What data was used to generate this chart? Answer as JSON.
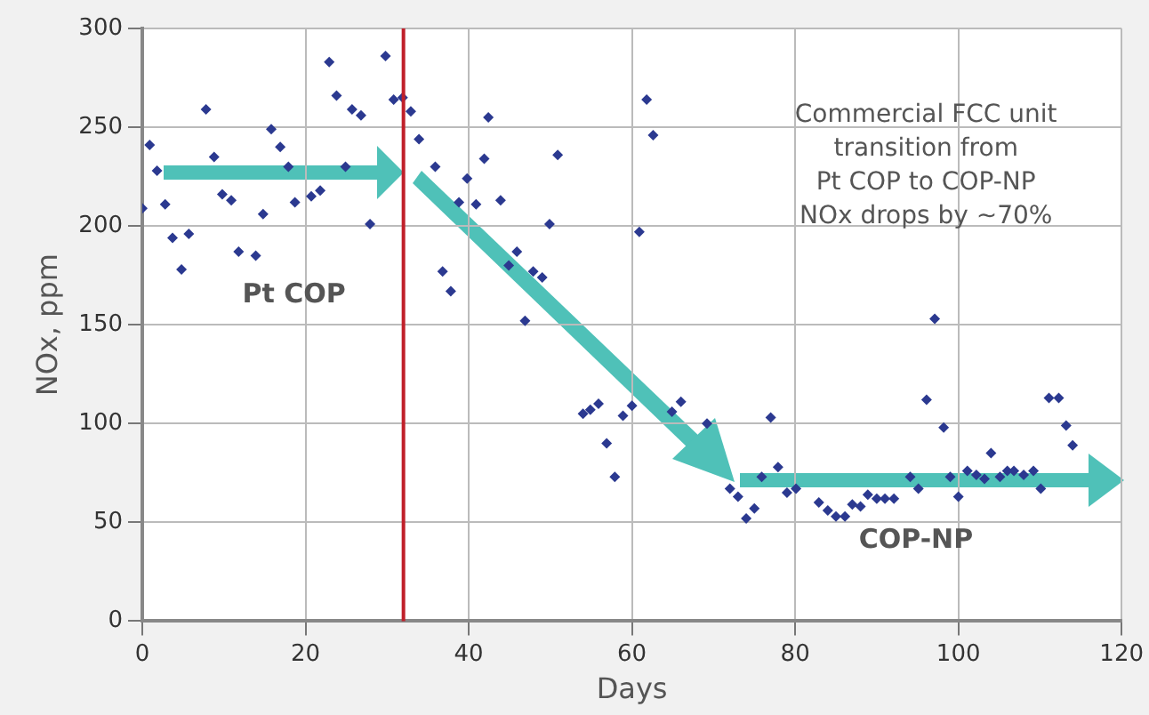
{
  "chart_data": {
    "type": "scatter",
    "xlabel": "Days",
    "ylabel": "NOx, ppm",
    "xlim": [
      0,
      120
    ],
    "xticks": [
      0,
      20,
      40,
      60,
      80,
      100,
      120
    ],
    "ylim": [
      0,
      300
    ],
    "yticks": [
      0,
      50,
      100,
      150,
      200,
      250,
      300
    ],
    "grid": true,
    "legend": false,
    "marker": "diamond",
    "series": [
      {
        "color": "#2b3990",
        "x": [
          0,
          0.9,
          1.8,
          2.8,
          3.7,
          4.8,
          5.7,
          7.8,
          8.8,
          9.8,
          10.9,
          11.8,
          13.9,
          14.8,
          15.8,
          16.9,
          17.9,
          18.7,
          20.7,
          21.8,
          22.9,
          23.8,
          24.9,
          25.7,
          26.8,
          27.9,
          29.8,
          30.8,
          31.9,
          32.9,
          33.9,
          35.9,
          36.8,
          37.8,
          38.8,
          39.8,
          40.9,
          41.9,
          42.4,
          43.9,
          44.9,
          45.9,
          46.9,
          47.9,
          49,
          49.9,
          50.9,
          54,
          54.9,
          55.9,
          56.9,
          57.9,
          58.9,
          60,
          60.9,
          61.8,
          62.6,
          64.9,
          66,
          69.2,
          72,
          73,
          74,
          75,
          75.9,
          77,
          77.9,
          79,
          80.1,
          82.9,
          84,
          85,
          86.1,
          87,
          88,
          88.9,
          90,
          91,
          92.1,
          94.1,
          95.1,
          96.1,
          97.1,
          98.2,
          99,
          100,
          101.1,
          102.2,
          103.2,
          104,
          105.1,
          106,
          106.8,
          108,
          109.2,
          110.1,
          111.1,
          112.3,
          113.2,
          114
        ],
        "values": [
          209,
          241,
          228,
          211,
          194,
          178,
          196,
          259,
          235,
          216,
          213,
          187,
          185,
          206,
          249,
          240,
          230,
          212,
          215,
          218,
          283,
          266,
          230,
          259,
          256,
          201,
          286,
          264,
          265,
          258,
          244,
          230,
          177,
          167,
          212,
          224,
          211,
          234,
          255,
          213,
          180,
          187,
          152,
          177,
          174,
          201,
          236,
          105,
          107,
          110,
          90,
          73,
          104,
          109,
          197,
          264,
          246,
          106,
          111,
          100,
          67,
          63,
          52,
          57,
          73,
          103,
          78,
          65,
          67,
          60,
          56,
          53,
          53,
          59,
          58,
          64,
          62,
          62,
          62,
          73,
          67,
          112,
          153,
          98,
          73,
          63,
          76,
          74,
          72,
          85,
          73,
          76,
          76,
          74,
          76,
          67,
          113,
          113,
          99,
          89
        ]
      }
    ],
    "ref_lines": [
      {
        "axis": "x",
        "value": 32,
        "color": "#c0202a"
      }
    ],
    "annotations": [
      "Pt COP",
      "COP-NP",
      "Commercial FCC unit\ntransition from\nPt COP to COP-NP\nNOx drops by ~70%"
    ]
  }
}
